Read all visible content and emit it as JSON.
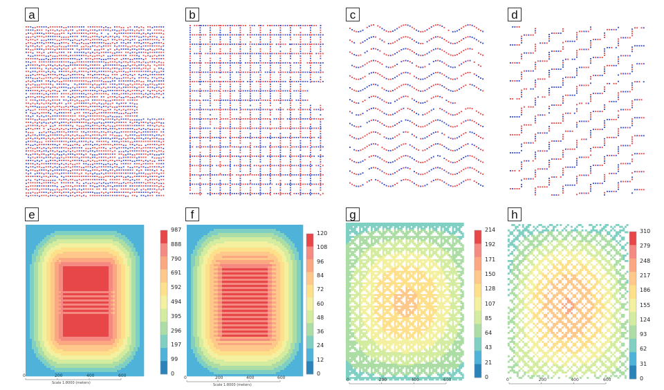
{
  "figure": {
    "panels": [
      {
        "id": "a",
        "label": "a",
        "kind": "pattern",
        "pattern": "dense-rows"
      },
      {
        "id": "b",
        "label": "b",
        "kind": "pattern",
        "pattern": "grid"
      },
      {
        "id": "c",
        "label": "c",
        "kind": "pattern",
        "pattern": "wave"
      },
      {
        "id": "d",
        "label": "d",
        "kind": "pattern",
        "pattern": "zigzag"
      },
      {
        "id": "e",
        "label": "e",
        "kind": "heatmap",
        "field": "smooth-dense",
        "colorbar_ticks": [
          "987",
          "888",
          "790",
          "691",
          "592",
          "494",
          "395",
          "296",
          "197",
          "99",
          "0"
        ],
        "scale_ticks": [
          "0",
          "200",
          "400",
          "600"
        ],
        "scale_caption": "Scale 1:8000 (meters)"
      },
      {
        "id": "f",
        "label": "f",
        "kind": "heatmap",
        "field": "smooth-grid",
        "colorbar_ticks": [
          "120",
          "108",
          "96",
          "84",
          "72",
          "60",
          "48",
          "36",
          "24",
          "12",
          "0"
        ],
        "scale_ticks": [
          "0",
          "200",
          "400",
          "600"
        ],
        "scale_caption": "Scale 1:8000 (meters)"
      },
      {
        "id": "g",
        "label": "g",
        "kind": "heatmap",
        "field": "lattice-wave",
        "colorbar_ticks": [
          "214",
          "192",
          "171",
          "150",
          "128",
          "107",
          "85",
          "64",
          "43",
          "21",
          "0"
        ],
        "scale_ticks": [
          "0",
          "200",
          "400",
          "600"
        ],
        "scale_caption": ""
      },
      {
        "id": "h",
        "label": "h",
        "kind": "heatmap",
        "field": "diagonal-zigzag",
        "colorbar_ticks": [
          "310",
          "279",
          "248",
          "217",
          "186",
          "155",
          "124",
          "93",
          "62",
          "31",
          "0"
        ],
        "scale_ticks": [
          "0",
          "200",
          "400",
          "600"
        ],
        "scale_caption": ""
      }
    ],
    "colors": {
      "red_node": "#e8474a",
      "blue_node": "#3a4cc8",
      "ramp": [
        "#2b83ba",
        "#4fb3d9",
        "#7fcfc3",
        "#abdda4",
        "#d4eca0",
        "#f3f0a0",
        "#fee08b",
        "#fdc88a",
        "#fba882",
        "#f48a82",
        "#e8474a"
      ]
    }
  }
}
